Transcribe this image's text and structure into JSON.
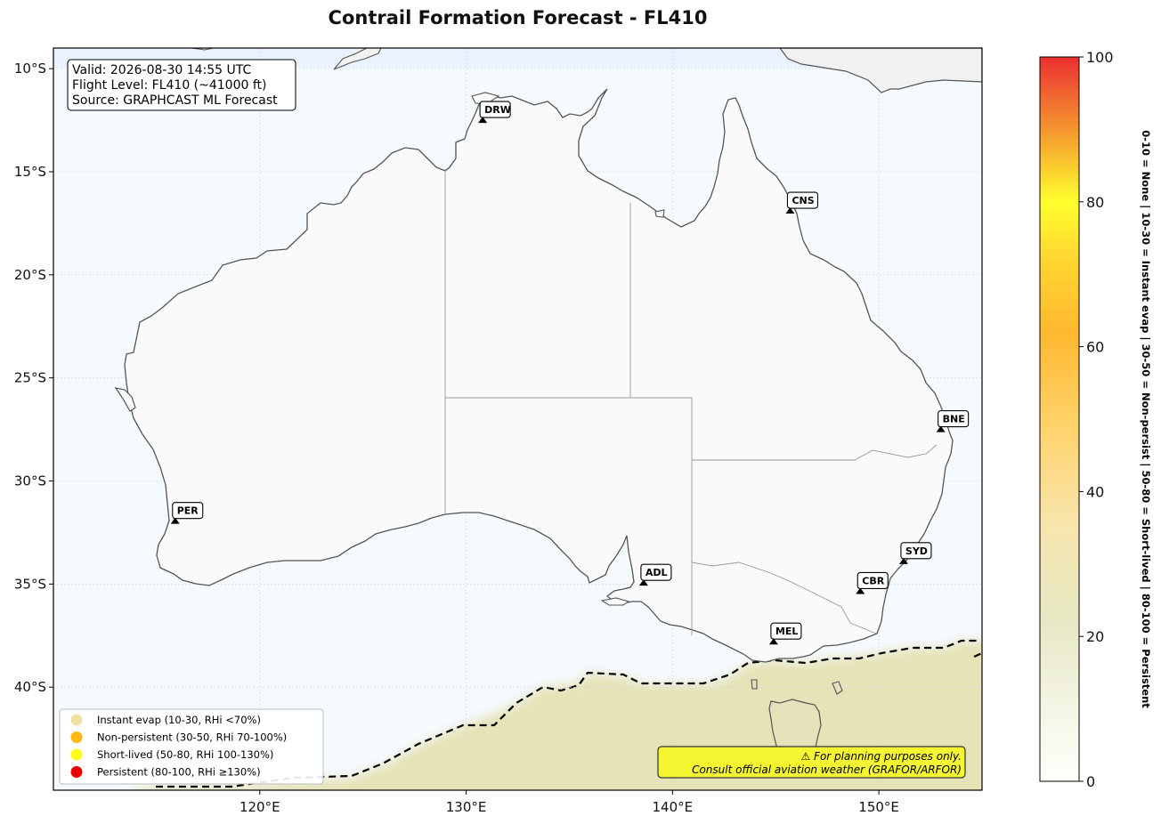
{
  "title": "Contrail Formation Forecast - FL410",
  "info_box": {
    "valid": "Valid: 2026-08-30 14:55 UTC",
    "flight_level": "Flight Level: FL410 (~41000 ft)",
    "source": "Source: GRAPHCAST ML Forecast"
  },
  "map": {
    "lon_range": [
      110,
      155
    ],
    "lat_range": [
      -45,
      -9
    ],
    "ocean_color": "#f5faff",
    "land_color": "#fafafa",
    "coast_color": "#555555",
    "contrail_zone_color": "#e6e3b7",
    "lon_ticks": [
      {
        "lon": 120,
        "label": "120°E"
      },
      {
        "lon": 130,
        "label": "130°E"
      },
      {
        "lon": 140,
        "label": "140°E"
      },
      {
        "lon": 150,
        "label": "150°E"
      }
    ],
    "lat_ticks": [
      {
        "lat": -10,
        "label": "10°S"
      },
      {
        "lat": -15,
        "label": "15°S"
      },
      {
        "lat": -20,
        "label": "20°S"
      },
      {
        "lat": -25,
        "label": "25°S"
      },
      {
        "lat": -30,
        "label": "30°S"
      },
      {
        "lat": -35,
        "label": "35°S"
      },
      {
        "lat": -40,
        "label": "40°S"
      }
    ]
  },
  "cities": [
    {
      "code": "DRW",
      "lon": 130.8,
      "lat": -12.5
    },
    {
      "code": "CNS",
      "lon": 145.7,
      "lat": -16.9
    },
    {
      "code": "BNE",
      "lon": 153.0,
      "lat": -27.5
    },
    {
      "code": "PER",
      "lon": 115.9,
      "lat": -31.95
    },
    {
      "code": "ADL",
      "lon": 138.6,
      "lat": -34.95
    },
    {
      "code": "SYD",
      "lon": 151.2,
      "lat": -33.9
    },
    {
      "code": "CBR",
      "lon": 149.1,
      "lat": -35.35
    },
    {
      "code": "MEL",
      "lon": 144.9,
      "lat": -37.8
    }
  ],
  "legend": [
    {
      "label": "Instant evap (10-30, RHi <70%)",
      "color": "#efe2a6"
    },
    {
      "label": "Non-persistent (30-50, RHi 70-100%)",
      "color": "#ffb60f"
    },
    {
      "label": "Short-lived (50-80, RHi 100-130%)",
      "color": "#ffff19"
    },
    {
      "label": "Persistent (80-100, RHi ≥130%)",
      "color": "#e80000"
    }
  ],
  "warning": {
    "line1": "⚠ For planning purposes only.",
    "line2": "Consult official aviation weather (GRAFOR/ARFOR)",
    "color": "#f5f531"
  },
  "colorbar": {
    "ticks": [
      0,
      20,
      40,
      60,
      80,
      100
    ],
    "side_label": "0-10 = None  |  10-30 = Instant evap  |  30-50 = Non-persist  |  50-80 = Short-lived  |  80-100 = Persistent"
  }
}
